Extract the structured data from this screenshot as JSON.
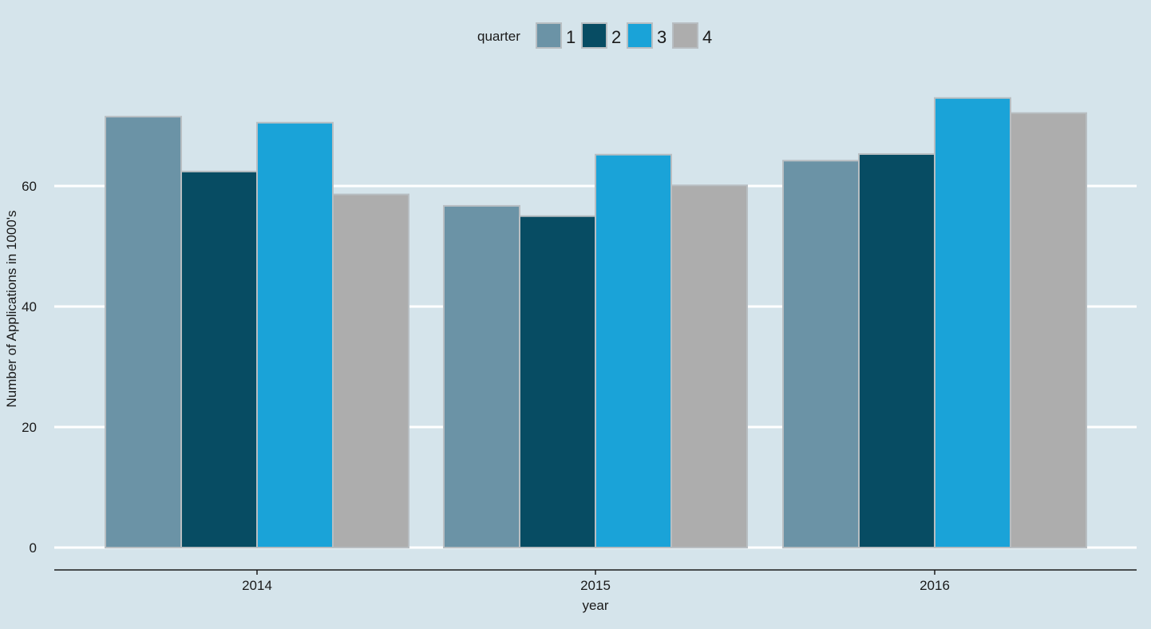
{
  "chart_data": {
    "type": "bar",
    "categories": [
      "2014",
      "2015",
      "2016"
    ],
    "series": [
      {
        "name": "1",
        "values": [
          71.5,
          56.7,
          64.2
        ]
      },
      {
        "name": "2",
        "values": [
          62.4,
          55.0,
          65.3
        ]
      },
      {
        "name": "3",
        "values": [
          70.5,
          65.2,
          74.6
        ]
      },
      {
        "name": "4",
        "values": [
          58.6,
          60.1,
          72.1
        ]
      }
    ],
    "legend_title": "quarter",
    "legend_position": "top",
    "xlabel": "year",
    "ylabel": "Number of Applications in 1000's",
    "ylim": [
      0,
      80
    ],
    "yticks": [
      0,
      20,
      40,
      60
    ],
    "grid": true,
    "colors": [
      "#6b93a6",
      "#074c63",
      "#1aa3d8",
      "#adadad"
    ],
    "background": "#d5e4eb"
  }
}
